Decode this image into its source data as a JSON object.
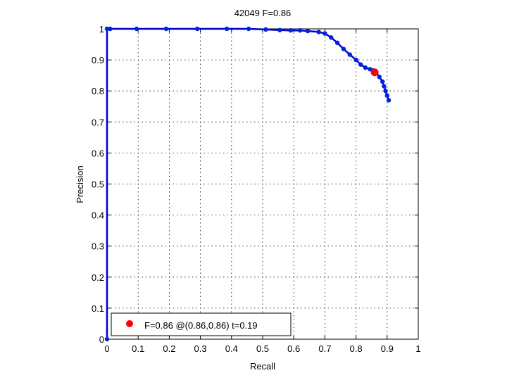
{
  "chart_data": {
    "type": "line",
    "title": "42049 F=0.86",
    "xlabel": "Recall",
    "ylabel": "Precision",
    "xlim": [
      0,
      1
    ],
    "ylim": [
      0,
      1
    ],
    "xticks": [
      "0",
      "0.1",
      "0.2",
      "0.3",
      "0.4",
      "0.5",
      "0.6",
      "0.7",
      "0.8",
      "0.9",
      "1"
    ],
    "yticks": [
      "0",
      "0.1",
      "0.2",
      "0.3",
      "0.4",
      "0.5",
      "0.6",
      "0.7",
      "0.8",
      "0.9",
      "1"
    ],
    "grid": true,
    "series": [
      {
        "color": "#0000cc",
        "marker_color": "#0022dd",
        "x": [
          0.0,
          0.0,
          0.01,
          0.095,
          0.19,
          0.29,
          0.385,
          0.455,
          0.51,
          0.555,
          0.59,
          0.62,
          0.645,
          0.68,
          0.7,
          0.72,
          0.74,
          0.76,
          0.78,
          0.8,
          0.815,
          0.83,
          0.845,
          0.855,
          0.865,
          0.875,
          0.885,
          0.89,
          0.895,
          0.9,
          0.905
        ],
        "y": [
          0.0,
          1.0,
          1.0,
          1.0,
          1.0,
          1.0,
          1.0,
          1.0,
          0.998,
          0.996,
          0.995,
          0.995,
          0.993,
          0.99,
          0.985,
          0.972,
          0.955,
          0.935,
          0.917,
          0.9,
          0.885,
          0.875,
          0.87,
          0.866,
          0.858,
          0.845,
          0.83,
          0.815,
          0.8,
          0.785,
          0.77
        ]
      }
    ],
    "best_point": {
      "x": 0.86,
      "y": 0.86,
      "color": "#ff0000"
    },
    "legend": {
      "label": "F=0.86 @(0.86,0.86) t=0.19",
      "position": "bottom-left"
    }
  }
}
